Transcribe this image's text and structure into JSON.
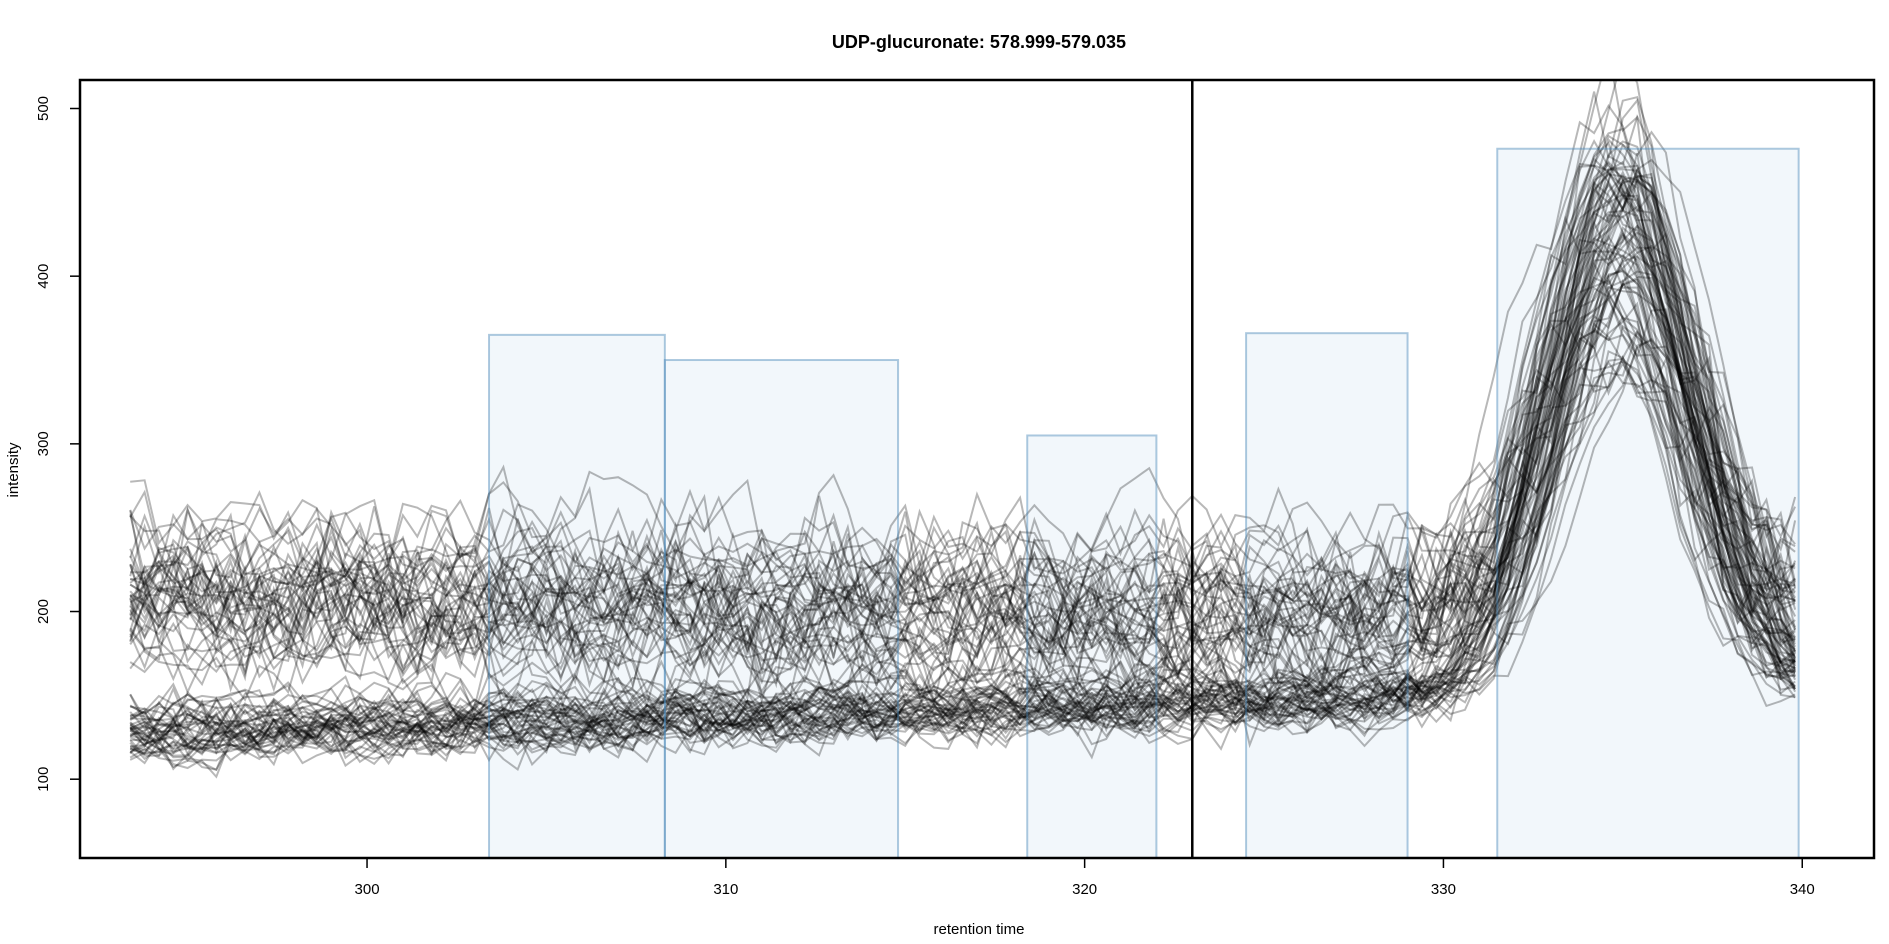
{
  "chart_data": {
    "type": "line",
    "title": "UDP-glucuronate: 578.999-579.035",
    "xlabel": "retention time",
    "ylabel": "intensity",
    "xlim": [
      292,
      342
    ],
    "ylim": [
      53,
      517
    ],
    "x_ticks": [
      300,
      310,
      320,
      330,
      340
    ],
    "y_ticks": [
      100,
      200,
      300,
      400,
      500
    ],
    "x_tick_labels": [
      "300",
      "310",
      "320",
      "330",
      "340"
    ],
    "y_tick_labels": [
      "100",
      "200",
      "300",
      "400",
      "500"
    ],
    "grid": false,
    "legend": "none",
    "vertical_line": {
      "x": 323
    },
    "trace_count": 90,
    "x_range": [
      293.4,
      339.9
    ],
    "peak_regions": [
      {
        "start": 303.4,
        "end": 308.3,
        "height": 365
      },
      {
        "start": 308.3,
        "end": 314.8,
        "height": 350
      },
      {
        "start": 318.4,
        "end": 322.0,
        "height": 305
      },
      {
        "start": 324.5,
        "end": 329.0,
        "height": 366
      },
      {
        "start": 331.5,
        "end": 339.9,
        "height": 476
      }
    ],
    "trace_groups": [
      {
        "group": "low baseline",
        "baseline_start": 128,
        "baseline_end": 155,
        "peak_apex_x": 335.0,
        "peak_height_range": [
          340,
          480
        ]
      },
      {
        "group": "high baseline",
        "baseline_start": 215,
        "baseline_end": 200,
        "peak_apex_x": 335.0,
        "peak_height_range": [
          350,
          500
        ]
      }
    ],
    "colors": {
      "trace": "#000000",
      "region_fill": "#dbe7f3",
      "region_stroke": "#4a88b8",
      "axis": "#000000"
    }
  }
}
